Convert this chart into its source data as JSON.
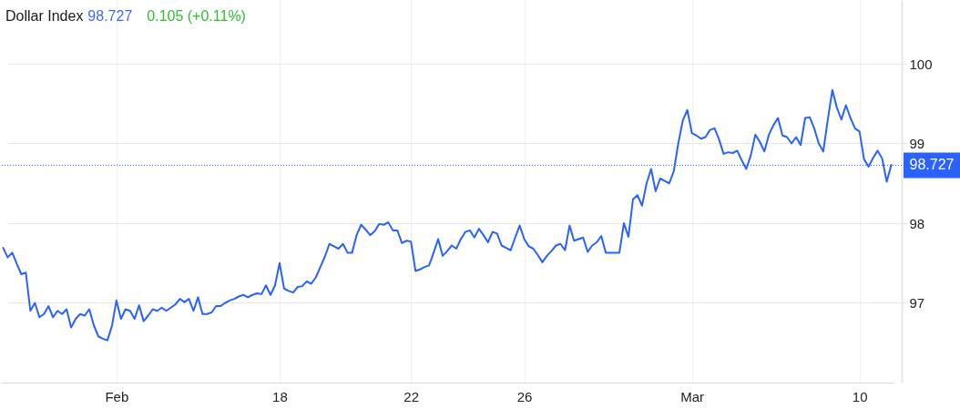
{
  "chart_data": {
    "type": "line",
    "title": "Dollar Index",
    "annotations": [
      "98.727",
      "0.105 (+0.11%)"
    ],
    "categories": [
      null,
      null,
      null,
      null,
      null,
      null,
      null,
      null,
      null,
      null,
      null,
      null,
      null,
      null,
      null,
      null,
      null,
      null,
      null,
      null,
      null,
      null,
      null,
      null,
      null,
      "Feb",
      null,
      null,
      null,
      null,
      null,
      null,
      null,
      null,
      null,
      null,
      null,
      null,
      null,
      null,
      null,
      null,
      null,
      null,
      null,
      null,
      null,
      null,
      null,
      null,
      null,
      null,
      null,
      null,
      null,
      null,
      null,
      null,
      null,
      null,
      null,
      "18",
      null,
      null,
      null,
      null,
      null,
      null,
      null,
      null,
      null,
      null,
      null,
      null,
      null,
      null,
      null,
      null,
      null,
      null,
      null,
      null,
      null,
      null,
      null,
      null,
      null,
      null,
      null,
      null,
      "22",
      null,
      null,
      null,
      null,
      null,
      null,
      null,
      null,
      null,
      null,
      null,
      null,
      null,
      null,
      null,
      null,
      null,
      null,
      null,
      null,
      null,
      null,
      null,
      null,
      "26",
      null,
      null,
      null,
      null,
      null,
      null,
      null,
      null,
      null,
      null,
      null,
      null,
      null,
      null,
      null,
      null,
      null,
      null,
      null,
      null,
      null,
      null,
      null,
      null,
      null,
      null,
      null,
      null,
      null,
      null,
      null,
      null,
      null,
      null,
      null,
      null,
      "Mar",
      null,
      null,
      null,
      null,
      null,
      null,
      null,
      null,
      null,
      null,
      null,
      null,
      null,
      null,
      null,
      null,
      null,
      null,
      null,
      null,
      null,
      null,
      null,
      null,
      null,
      null,
      null,
      null,
      null,
      null,
      null,
      null,
      null,
      null,
      null,
      null,
      "10",
      null,
      null,
      null,
      null,
      null,
      null,
      null
    ],
    "series": [
      {
        "color": "#2962ff",
        "values": [
          97.69,
          97.57,
          97.63,
          97.49,
          97.36,
          97.38,
          96.9,
          97.0,
          96.82,
          96.86,
          96.96,
          96.82,
          96.9,
          96.86,
          96.92,
          96.69,
          96.8,
          96.86,
          96.84,
          96.92,
          96.72,
          96.58,
          96.55,
          96.53,
          96.71,
          97.03,
          96.8,
          96.92,
          96.9,
          96.8,
          96.97,
          96.77,
          96.84,
          96.92,
          96.9,
          96.94,
          96.9,
          96.94,
          96.98,
          97.05,
          97.01,
          97.05,
          96.9,
          97.07,
          96.86,
          96.86,
          96.88,
          96.96,
          96.96,
          97.0,
          97.03,
          97.05,
          97.08,
          97.1,
          97.07,
          97.1,
          97.12,
          97.11,
          97.22,
          97.1,
          97.22,
          97.5,
          97.18,
          97.15,
          97.13,
          97.2,
          97.21,
          97.27,
          97.24,
          97.32,
          97.45,
          97.58,
          97.74,
          97.71,
          97.68,
          97.74,
          97.63,
          97.63,
          97.85,
          97.98,
          97.92,
          97.85,
          97.9,
          97.99,
          97.98,
          98.01,
          97.91,
          97.91,
          97.75,
          97.78,
          97.77,
          97.4,
          97.42,
          97.45,
          97.47,
          97.63,
          97.8,
          97.59,
          97.65,
          97.72,
          97.68,
          97.8,
          97.89,
          97.91,
          97.82,
          97.93,
          97.85,
          97.76,
          97.89,
          97.87,
          97.72,
          97.69,
          97.66,
          97.82,
          97.97,
          97.8,
          97.71,
          97.68,
          97.6,
          97.51,
          97.59,
          97.65,
          97.72,
          97.74,
          97.66,
          97.97,
          97.78,
          97.8,
          97.82,
          97.64,
          97.72,
          97.76,
          97.84,
          97.63,
          97.63,
          97.63,
          97.63,
          98.0,
          97.83,
          98.3,
          98.35,
          98.22,
          98.5,
          98.68,
          98.4,
          98.56,
          98.53,
          98.5,
          98.65,
          99.0,
          99.29,
          99.42,
          99.13,
          99.1,
          99.06,
          99.08,
          99.17,
          99.19,
          99.05,
          98.87,
          98.89,
          98.88,
          98.91,
          98.79,
          98.68,
          98.85,
          99.11,
          99.02,
          98.9,
          99.11,
          99.23,
          99.32,
          99.1,
          99.08,
          99.0,
          99.08,
          98.98,
          99.32,
          99.33,
          99.19,
          99.0,
          98.9,
          99.3,
          99.67,
          99.45,
          99.3,
          99.48,
          99.32,
          99.19,
          99.15,
          98.8,
          98.71,
          98.82,
          98.91,
          98.81,
          98.52,
          98.73
        ]
      }
    ],
    "ylim": [
      96,
      100.8
    ],
    "yticks": [
      97,
      98,
      99,
      100
    ],
    "grid": true,
    "line_style": "solid",
    "ref_lines": [
      {
        "axis": "y",
        "value": 98.727,
        "label": "98.727",
        "color": "#2962ff",
        "line_style": "dotted"
      }
    ]
  }
}
